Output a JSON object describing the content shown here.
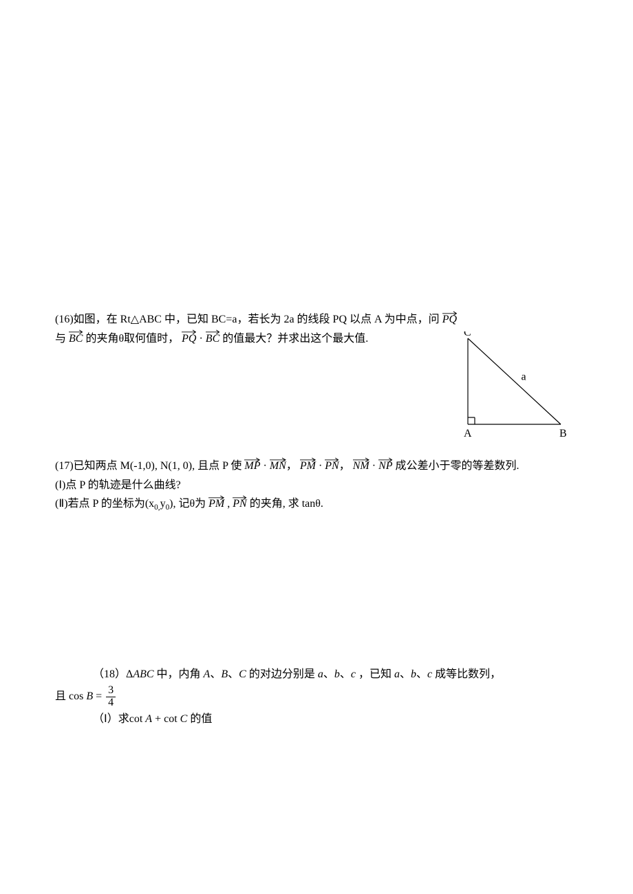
{
  "p16": {
    "number": "(16)",
    "t1": "如图，在 Rt△ABC 中，已知 BC=a，若长为 2a 的线段 PQ 以点 A 为中点，问",
    "v1": "PQ",
    "t2": "与",
    "v2": "BC",
    "t3": "的夹角θ取何值时，",
    "v3": "PQ",
    "dot1": "·",
    "v4": "BC",
    "t4": "的值最大？并求出这个最大值.",
    "labelA": "A",
    "labelB": "B",
    "labelC": "C",
    "labela": "a"
  },
  "p17": {
    "number": "(17)",
    "t1": "已知两点 M(-1,0), N(1, 0),  且点 P 使",
    "v1": "MP",
    "dot1": "·",
    "v2": "MN",
    "comma1": "，",
    "v3": "PM",
    "dot2": "·",
    "v4": "PN",
    "comma2": "，",
    "v5": "NM",
    "dot3": "·",
    "v6": "NP",
    "t2": "成公差小于零的等差数列.",
    "part1": "(Ⅰ)点 P 的轨迹是什么曲线?",
    "part2a": "(Ⅱ)若点 P 的坐标为(x",
    "s0a": "0,",
    "part2a2": "y",
    "s0b": "0",
    "part2b": "),  记θ为",
    "v7": "PM",
    "comma3": " ,",
    "v8": "PN",
    "t3": "的夹角,  求 tanθ."
  },
  "p18": {
    "number": "（18）",
    "t1a": "Δ",
    "abc": "ABC",
    "t1b": "中，内角",
    "A": "A",
    "sep1": "、",
    "B": "B",
    "sep2": "、",
    "C": "C",
    "t1c": "的对边分别是",
    "a": "a",
    "sep3": "、",
    "b": "b",
    "sep4": "、",
    "c": "c",
    "t1d": "，已知",
    "a2": "a",
    "sep5": "、",
    "b2": "b",
    "sep6": "、",
    "c2": "c",
    "t1e": "成等比数列，",
    "t2a": "且",
    "cosB": "cos",
    "Bv": "B",
    "eq": " = ",
    "num": "3",
    "den": "4",
    "part1a": "（Ⅰ）求",
    "cotA": "cot ",
    "Av": "A",
    "plus": " + ",
    "cotC": "cot ",
    "Cv": "C",
    "part1b": "的值"
  },
  "figure": {
    "width": 170,
    "height": 170,
    "points": {
      "A": [
        20,
        135
      ],
      "B": [
        155,
        135
      ],
      "C": [
        20,
        10
      ]
    },
    "right_angle_size": 10,
    "stroke": "#000000",
    "stroke_width": 1.2
  }
}
